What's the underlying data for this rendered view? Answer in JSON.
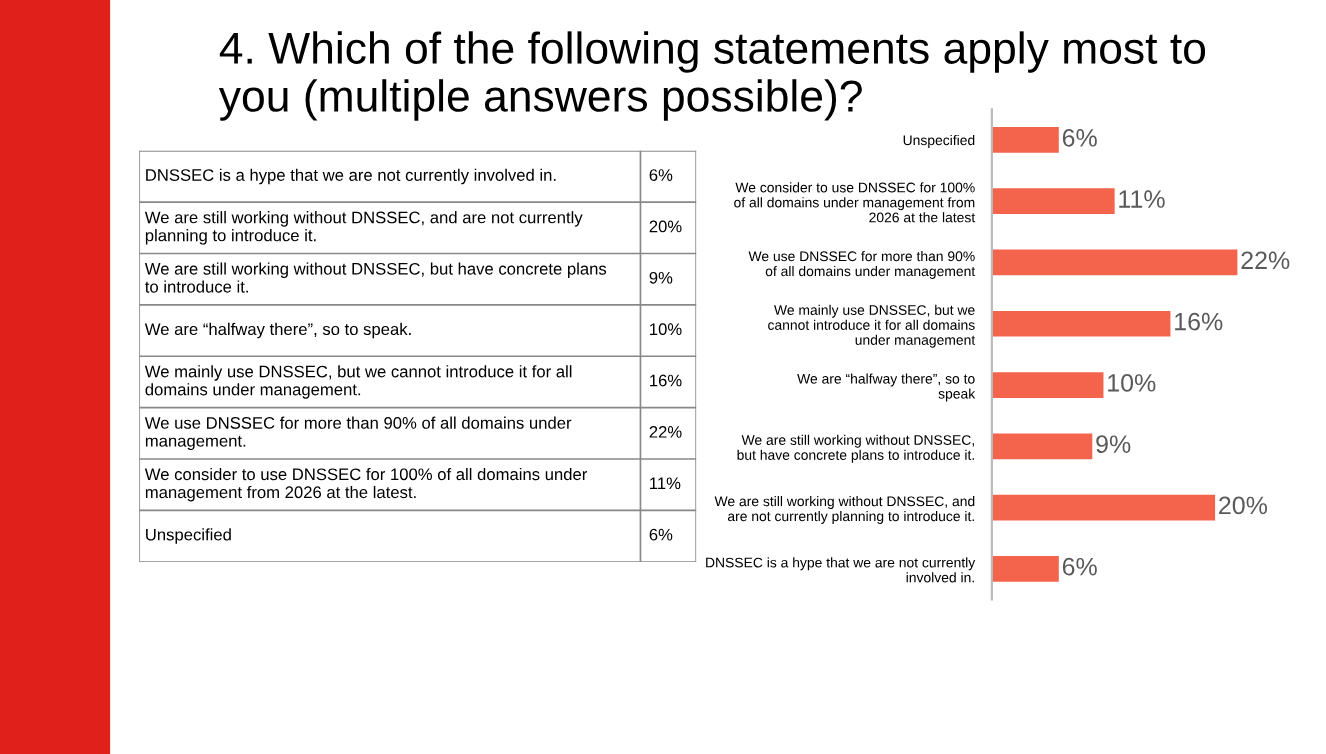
{
  "chart_data": [
    {
      "type": "other",
      "title": "4. Which of the following statements apply most to\nyou (multiple answers possible)?",
      "categories": [
        "DNSSEC is a hype that we are not currently involved in.",
        "We are still working without DNSSEC, and are not currently\nplanning to introduce it.",
        "We are still working without DNSSEC, but have concrete plans\nto introduce it.",
        "We are “halfway there”, so to speak.",
        "We mainly use DNSSEC, but we cannot introduce it for all\ndomains under management.",
        "We use DNSSEC for more than 90% of all domains under\nmanagement.",
        "We consider to use DNSSEC for 100% of all domains under\nmanagement from 2026 at the latest.",
        "Unspecified"
      ],
      "values": [
        6,
        20,
        9,
        10,
        16,
        22,
        11,
        6
      ],
      "value_labels": [
        "6%",
        "20%",
        "9%",
        "10%",
        "16%",
        "22%",
        "11%",
        "6%"
      ]
    },
    {
      "type": "bar",
      "orientation": "horizontal",
      "color": "#f4644c",
      "data_labels": true,
      "categories": [
        "Unspecified",
        "We consider to use DNSSEC for 100%\nof all domains under management from\n2026 at the latest",
        "We use DNSSEC for more than 90%\nof all domains under management",
        "We mainly use DNSSEC, but we\ncannot introduce it for all domains\nunder management",
        "We are “halfway there”, so to\nspeak",
        "We are still working without DNSSEC,\nbut have concrete plans to introduce it.",
        "We are still working without DNSSEC, and\nare not currently planning to introduce it.",
        "DNSSEC is a hype that we are not currently\ninvolved in."
      ],
      "values": [
        6,
        11,
        22,
        16,
        10,
        9,
        20,
        6
      ],
      "value_labels": [
        "6%",
        "11%",
        "22%",
        "16%",
        "10%",
        "9%",
        "20%",
        "6%"
      ]
    }
  ]
}
